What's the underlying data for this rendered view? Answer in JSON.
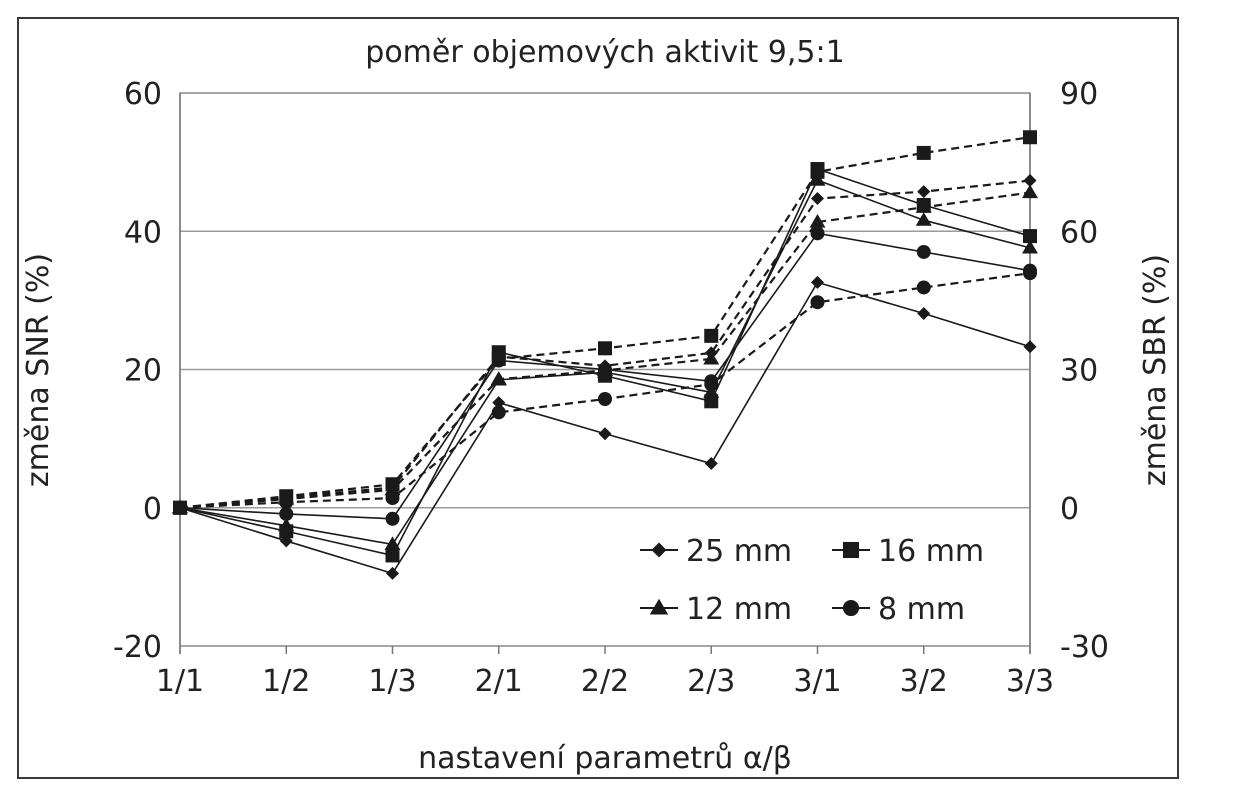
{
  "chart_data": {
    "type": "line",
    "title": "poměr objemových aktivit 9,5:1",
    "xlabel": "nastavení parametrů α/β",
    "ylabel_left": "změna SNR (%)",
    "ylabel_right": "změna SBR (%)",
    "categories": [
      "1/1",
      "1/2",
      "1/3",
      "2/1",
      "2/2",
      "2/3",
      "3/1",
      "3/2",
      "3/3"
    ],
    "y_left": {
      "range": [
        -20,
        60
      ],
      "ticks": [
        -20,
        0,
        20,
        40,
        60
      ],
      "tick_labels": [
        "-20",
        "0",
        "20",
        "40",
        "60"
      ]
    },
    "y_right": {
      "range": [
        -30,
        90
      ],
      "ticks": [
        -30,
        0,
        30,
        60,
        90
      ],
      "tick_labels": [
        "-30",
        "0",
        "30",
        "60",
        "90"
      ]
    },
    "grid": "horizontal",
    "legend_position": "bottom-right",
    "legend": [
      {
        "label": "25 mm",
        "marker": "diamond"
      },
      {
        "label": "16 mm",
        "marker": "square"
      },
      {
        "label": "12 mm",
        "marker": "triangle"
      },
      {
        "label": "8 mm",
        "marker": "circle"
      }
    ],
    "series": [
      {
        "size": "25 mm",
        "axis": "left",
        "line": "solid",
        "marker": "diamond",
        "values": [
          0,
          -4.8,
          -9.5,
          15.2,
          10.7,
          6.4,
          32.6,
          28.1,
          23.3
        ]
      },
      {
        "size": "16 mm",
        "axis": "left",
        "line": "solid",
        "marker": "square",
        "values": [
          0,
          -3.4,
          -6.9,
          22.5,
          19.1,
          15.4,
          49.0,
          43.8,
          39.3
        ]
      },
      {
        "size": "12 mm",
        "axis": "left",
        "line": "solid",
        "marker": "triangle",
        "values": [
          0,
          -2.6,
          -5.3,
          18.5,
          19.6,
          16.7,
          47.4,
          41.6,
          37.6
        ]
      },
      {
        "size": "8 mm",
        "axis": "left",
        "line": "solid",
        "marker": "circle",
        "values": [
          0,
          -0.9,
          -1.6,
          21.3,
          20.0,
          18.3,
          39.7,
          37.0,
          34.3
        ]
      },
      {
        "size": "25 mm",
        "axis": "right",
        "line": "dashed",
        "marker": "diamond",
        "values": [
          0,
          2.2,
          4.4,
          32.8,
          30.8,
          33.6,
          67.1,
          68.6,
          71.0
        ]
      },
      {
        "size": "16 mm",
        "axis": "right",
        "line": "dashed",
        "marker": "square",
        "values": [
          0,
          2.5,
          5.1,
          32.3,
          34.6,
          37.3,
          72.9,
          77.0,
          80.4
        ]
      },
      {
        "size": "12 mm",
        "axis": "right",
        "line": "dashed",
        "marker": "triangle",
        "values": [
          0,
          1.9,
          3.9,
          27.9,
          29.8,
          32.3,
          62.0,
          65.2,
          68.4
        ]
      },
      {
        "size": "8 mm",
        "axis": "right",
        "line": "dashed",
        "marker": "circle",
        "values": [
          0,
          1.2,
          2.1,
          20.7,
          23.6,
          26.8,
          44.6,
          47.8,
          50.9
        ]
      }
    ]
  }
}
